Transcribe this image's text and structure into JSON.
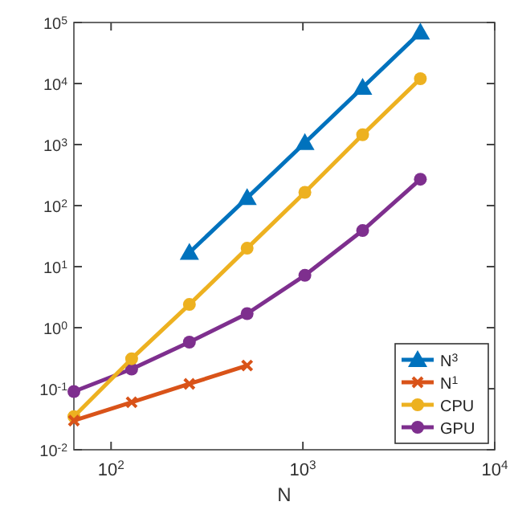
{
  "chart_data": {
    "type": "line",
    "xlabel": "N",
    "log": "xy",
    "grid": false,
    "legend": "bottom right",
    "line_style": "solid",
    "xlim": [
      64,
      10000
    ],
    "xticks": [
      {
        "value": 100,
        "label": "10$^{2}$"
      },
      {
        "value": 1000,
        "label": "10$^{3}$"
      },
      {
        "value": 10000,
        "label": "10$^{4}$"
      }
    ],
    "ylim": [
      0.01,
      100000
    ],
    "yticks": [
      {
        "value": 0.01,
        "label": "10$^{-2}$"
      },
      {
        "value": 0.1,
        "label": "10$^{-1}$"
      },
      {
        "value": 1,
        "label": "10$^{0}$"
      },
      {
        "value": 10,
        "label": "10$^{1}$"
      },
      {
        "value": 100,
        "label": "10$^{2}$"
      },
      {
        "value": 1000,
        "label": "10$^{3}$"
      },
      {
        "value": 10000,
        "label": "10$^{4}$"
      },
      {
        "value": 100000,
        "label": "10$^{5}$"
      }
    ],
    "series": [
      {
        "name": "N$^{3}$",
        "color": "#0072bd",
        "marker": "triangle",
        "x": [
          256,
          512,
          1024,
          2048,
          4096
        ],
        "values": [
          17,
          134,
          1070,
          8600,
          69000
        ]
      },
      {
        "name": "N$^{1}$",
        "color": "#d95319",
        "marker": "cross",
        "x": [
          64,
          128,
          256,
          512
        ],
        "values": [
          0.03,
          0.06,
          0.12,
          0.24
        ]
      },
      {
        "name": "CPU",
        "color": "#edb120",
        "marker": "circle",
        "x": [
          64,
          128,
          256,
          512,
          1024,
          2048,
          4096
        ],
        "values": [
          0.035,
          0.31,
          2.4,
          20,
          165,
          1450,
          12000
        ]
      },
      {
        "name": "GPU",
        "color": "#7e2f8e",
        "marker": "circle",
        "x": [
          64,
          128,
          256,
          512,
          1024,
          2048,
          4096
        ],
        "values": [
          0.09,
          0.21,
          0.58,
          1.7,
          7.2,
          39,
          270
        ]
      }
    ]
  }
}
